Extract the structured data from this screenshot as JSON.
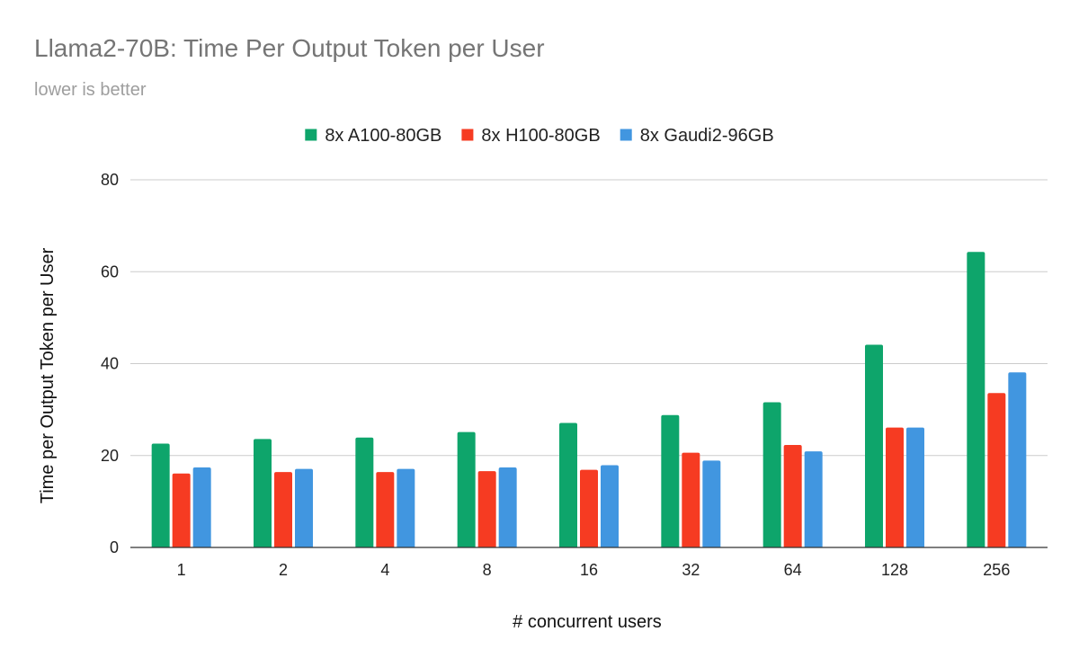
{
  "chart_data": {
    "type": "bar",
    "title": "Llama2-70B: Time Per Output Token per User",
    "subtitle": "lower is better",
    "xlabel": "# concurrent users",
    "ylabel": "Time per Output Token per User",
    "categories": [
      "1",
      "2",
      "4",
      "8",
      "16",
      "32",
      "64",
      "128",
      "256"
    ],
    "series": [
      {
        "name": "8x A100-80GB",
        "color": "#0ea56b",
        "values": [
          22.6,
          23.6,
          23.9,
          25.1,
          27.1,
          28.8,
          31.6,
          44.1,
          64.3
        ]
      },
      {
        "name": "8x H100-80GB",
        "color": "#f63b22",
        "values": [
          16.1,
          16.4,
          16.4,
          16.6,
          16.9,
          20.6,
          22.3,
          26.1,
          33.6
        ]
      },
      {
        "name": "8x Gaudi2-96GB",
        "color": "#4196e0",
        "values": [
          17.4,
          17.1,
          17.1,
          17.4,
          17.9,
          18.9,
          20.9,
          26.1,
          38.1
        ]
      }
    ],
    "ylim": [
      0,
      80
    ],
    "yticks": [
      0,
      20,
      40,
      60,
      80
    ],
    "grid": true,
    "legend_position": "top-center"
  }
}
